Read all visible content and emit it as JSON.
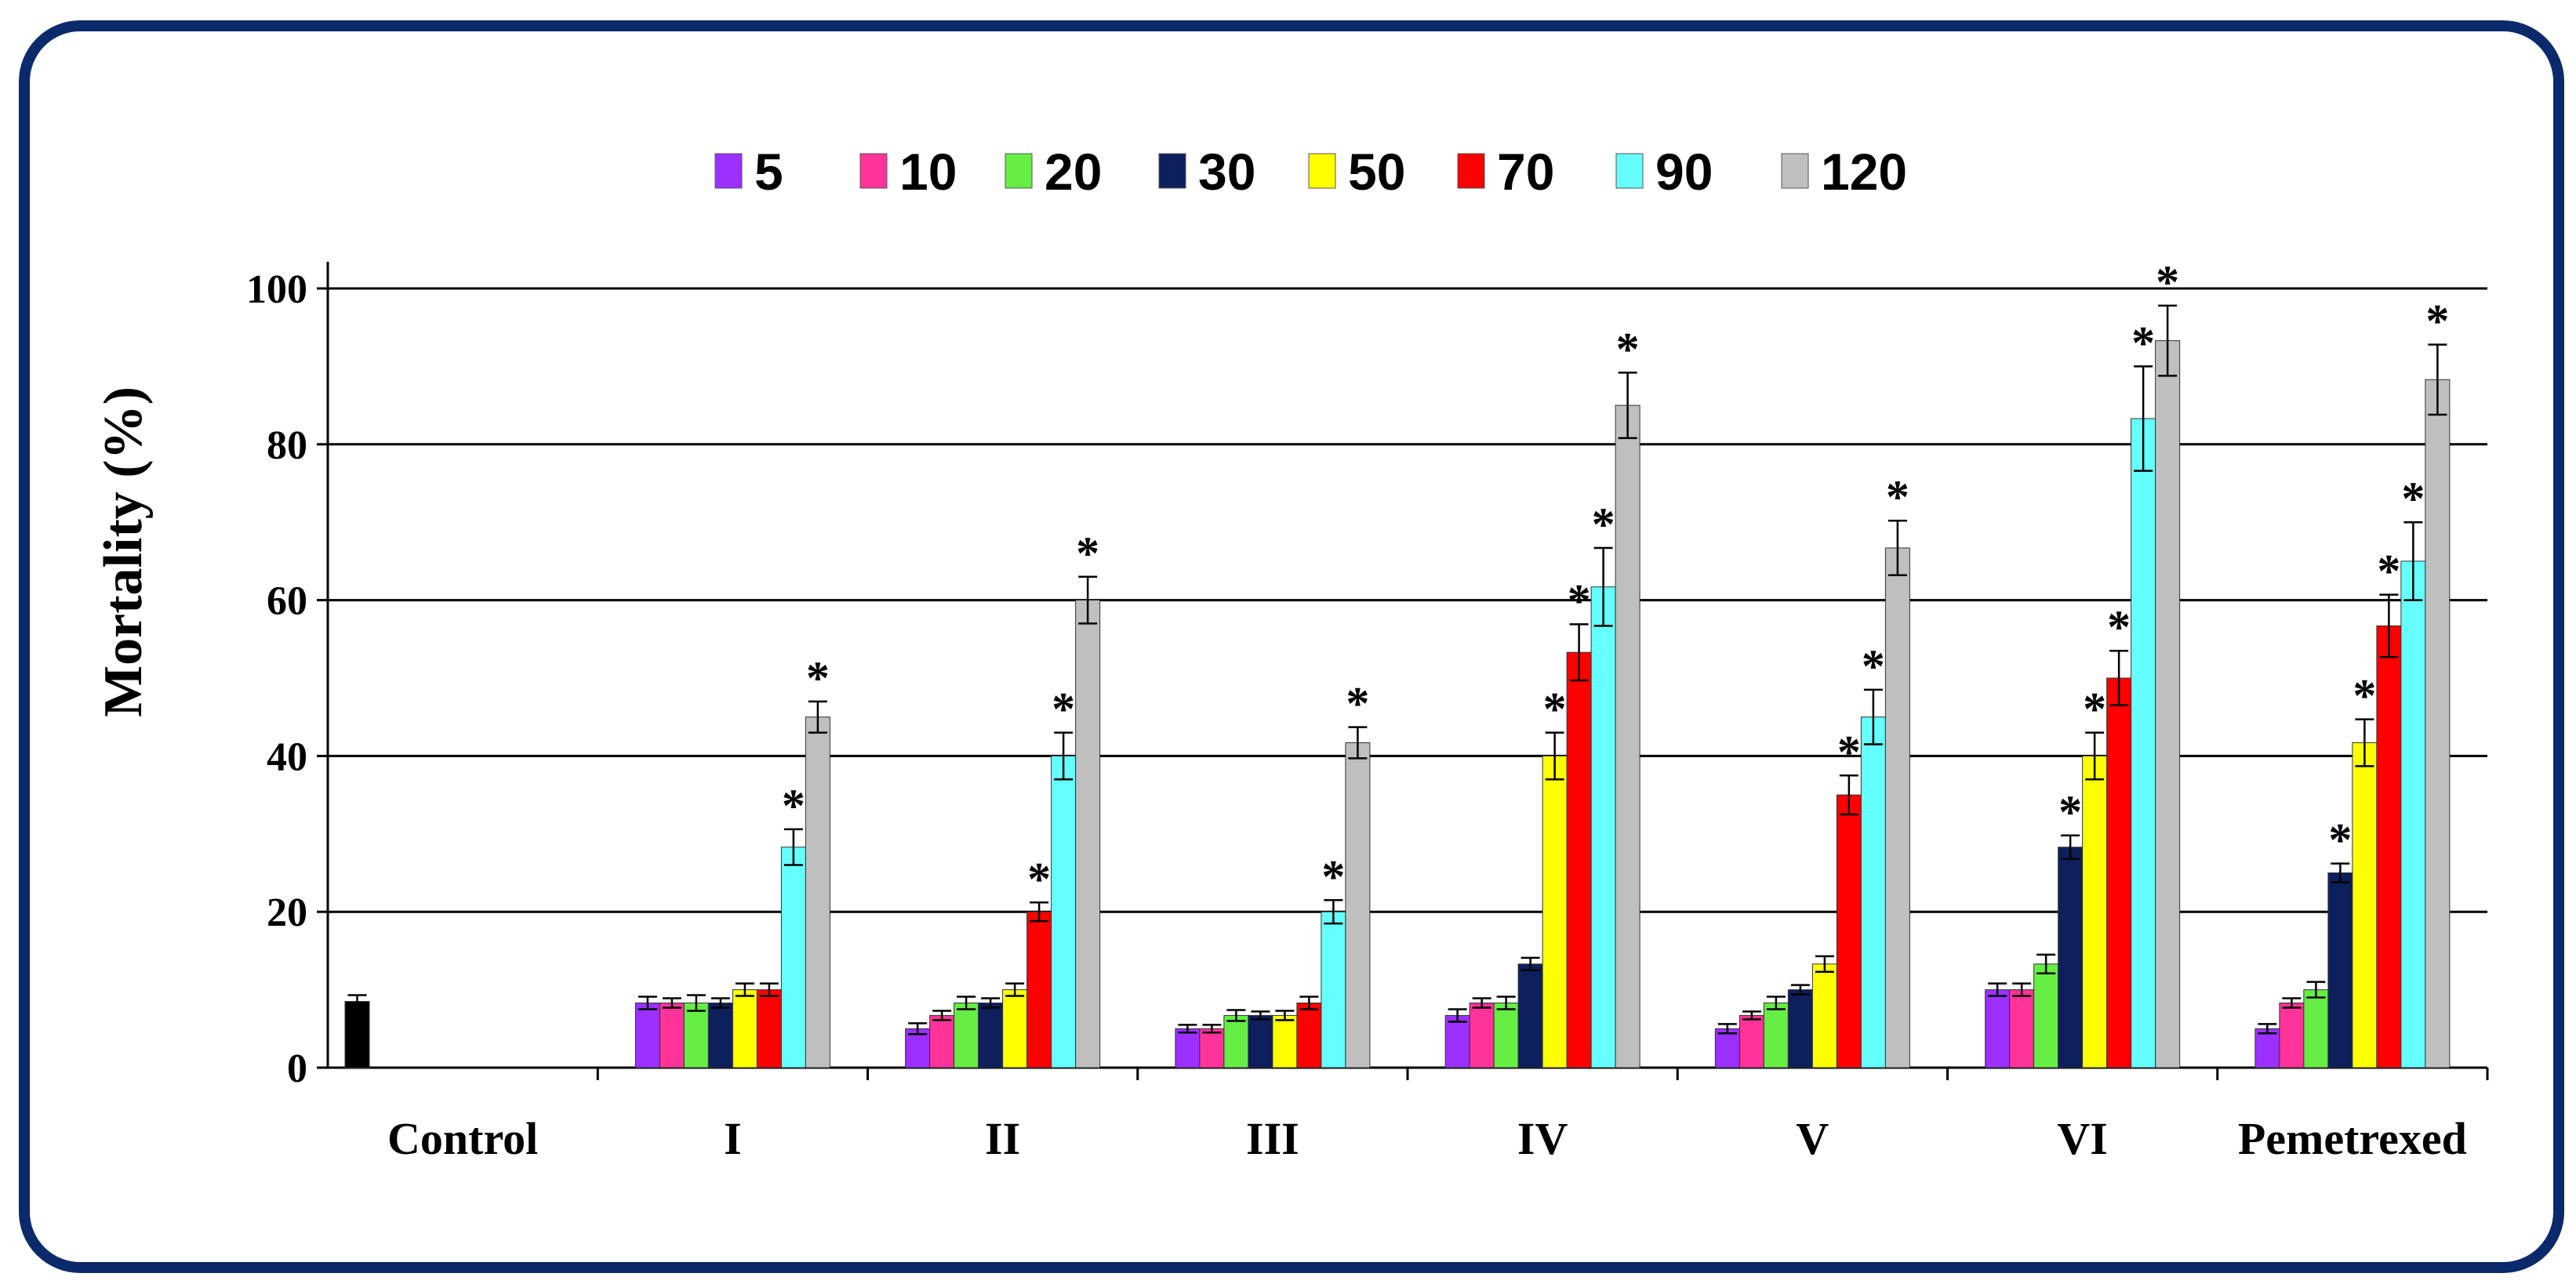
{
  "chart_data": {
    "type": "bar",
    "title": "",
    "xlabel": "",
    "ylabel": "Mortality (%)",
    "ylim": [
      0,
      100
    ],
    "yticks": [
      0,
      20,
      40,
      60,
      80,
      100
    ],
    "grid": true,
    "legend_position": "top",
    "categories": [
      "Control",
      "I",
      "II",
      "III",
      "IV",
      "V",
      "VI",
      "Pemetrexed"
    ],
    "control": {
      "name": "Control",
      "value": 8.5,
      "error": 0.8,
      "color": "#000000"
    },
    "series": [
      {
        "name": "5",
        "color": "#9b30ff",
        "values": [
          null,
          8.3,
          5.0,
          5.0,
          6.7,
          5.0,
          10.0,
          5.0
        ],
        "errors": [
          null,
          0.8,
          0.7,
          0.5,
          0.8,
          0.6,
          0.8,
          0.6
        ],
        "significant": [
          false,
          false,
          false,
          false,
          false,
          false,
          false,
          false
        ]
      },
      {
        "name": "10",
        "color": "#ff3399",
        "values": [
          null,
          8.3,
          6.7,
          5.0,
          8.3,
          6.7,
          10.0,
          8.3
        ],
        "errors": [
          null,
          0.6,
          0.6,
          0.5,
          0.6,
          0.5,
          0.8,
          0.6
        ],
        "significant": [
          false,
          false,
          false,
          false,
          false,
          false,
          false,
          false
        ]
      },
      {
        "name": "20",
        "color": "#66ee44",
        "values": [
          null,
          8.3,
          8.3,
          6.7,
          8.3,
          8.3,
          13.3,
          10.0
        ],
        "errors": [
          null,
          1.0,
          0.8,
          0.7,
          0.8,
          0.8,
          1.2,
          1.0
        ],
        "significant": [
          false,
          false,
          false,
          false,
          false,
          false,
          false,
          false
        ]
      },
      {
        "name": "30",
        "color": "#0d1f5c",
        "values": [
          null,
          8.3,
          8.3,
          6.7,
          13.3,
          10.0,
          28.3,
          25.0
        ],
        "errors": [
          null,
          0.6,
          0.6,
          0.5,
          0.8,
          0.6,
          1.5,
          1.2
        ],
        "significant": [
          false,
          false,
          false,
          false,
          false,
          false,
          true,
          true
        ]
      },
      {
        "name": "50",
        "color": "#ffff00",
        "values": [
          null,
          10.0,
          10.0,
          6.7,
          40.0,
          13.3,
          40.0,
          41.7
        ],
        "errors": [
          null,
          0.8,
          0.8,
          0.6,
          3.0,
          1.0,
          3.0,
          3.0
        ],
        "significant": [
          false,
          false,
          false,
          false,
          true,
          false,
          true,
          true
        ]
      },
      {
        "name": "70",
        "color": "#ff0000",
        "values": [
          null,
          10.0,
          20.0,
          8.3,
          53.3,
          35.0,
          50.0,
          56.7
        ],
        "errors": [
          null,
          0.8,
          1.2,
          0.8,
          3.6,
          2.5,
          3.5,
          4.0
        ],
        "significant": [
          false,
          false,
          true,
          false,
          true,
          true,
          true,
          true
        ]
      },
      {
        "name": "90",
        "color": "#66ffff",
        "values": [
          null,
          28.3,
          40.0,
          20.0,
          61.7,
          45.0,
          83.3,
          65.0
        ],
        "errors": [
          null,
          2.3,
          3.0,
          1.5,
          5.0,
          3.5,
          6.7,
          5.0
        ],
        "significant": [
          false,
          true,
          true,
          true,
          true,
          true,
          true,
          true
        ]
      },
      {
        "name": "120",
        "color": "#bfbfbf",
        "values": [
          null,
          45.0,
          60.0,
          41.7,
          85.0,
          66.7,
          93.3,
          88.3
        ],
        "errors": [
          null,
          2.0,
          3.0,
          2.0,
          4.2,
          3.5,
          4.5,
          4.5
        ],
        "significant": [
          false,
          true,
          true,
          true,
          true,
          true,
          true,
          true
        ]
      }
    ],
    "significance_marker": "*"
  }
}
